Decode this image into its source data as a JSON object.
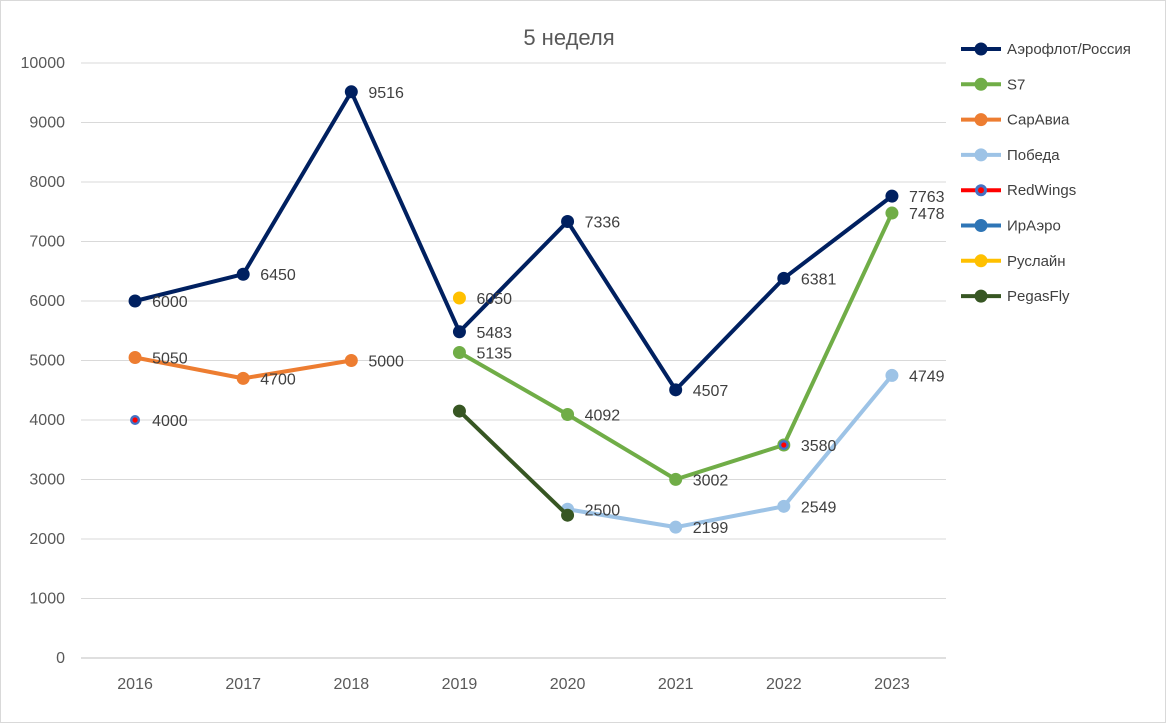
{
  "chart_data": {
    "type": "line",
    "title": "5 неделя",
    "xlabel": "",
    "ylabel": "",
    "categories": [
      "2016",
      "2017",
      "2018",
      "2019",
      "2020",
      "2021",
      "2022",
      "2023"
    ],
    "ylim": [
      0,
      10000
    ],
    "yticks": [
      "0",
      "1000",
      "2000",
      "3000",
      "4000",
      "5000",
      "6000",
      "7000",
      "8000",
      "9000",
      "10000"
    ],
    "grid": true,
    "legend": "right",
    "series": [
      {
        "name": "Аэрофлот/Россия",
        "color": "#002060",
        "values": [
          6000,
          6450,
          9516,
          5483,
          7336,
          4507,
          6381,
          7763
        ],
        "labels": [
          "6000",
          "6450",
          "9516",
          "5483",
          "7336",
          "4507",
          "6381",
          "7763"
        ]
      },
      {
        "name": "S7",
        "color": "#70ad47",
        "values": [
          null,
          null,
          null,
          5135,
          4092,
          3002,
          3580,
          7478
        ],
        "labels": [
          null,
          null,
          null,
          "5135",
          "4092",
          "3002",
          "3580",
          "7478"
        ]
      },
      {
        "name": "СарАвиа",
        "color": "#ed7d31",
        "values": [
          5050,
          4700,
          5000,
          null,
          null,
          null,
          null,
          null
        ],
        "labels": [
          "5050",
          "4700",
          "5000",
          null,
          null,
          null,
          null,
          null
        ]
      },
      {
        "name": "Победа",
        "color": "#9dc3e6",
        "values": [
          null,
          null,
          null,
          null,
          2500,
          2199,
          2549,
          4749
        ],
        "labels": [
          null,
          null,
          null,
          null,
          "2500",
          "2199",
          "2549",
          "4749"
        ]
      },
      {
        "name": "RedWings",
        "color": "#ff0000",
        "marker_color": "#4472c4",
        "values": [
          4000,
          null,
          null,
          null,
          null,
          null,
          3580,
          null
        ],
        "labels": [
          "4000",
          null,
          null,
          null,
          null,
          null,
          null,
          null
        ]
      },
      {
        "name": "ИрАэро",
        "color": "#2e75b6",
        "values": [
          null,
          null,
          null,
          null,
          null,
          null,
          null,
          null
        ],
        "labels": [
          null,
          null,
          null,
          null,
          null,
          null,
          null,
          null
        ]
      },
      {
        "name": "Руслайн",
        "color": "#ffc000",
        "values": [
          null,
          null,
          null,
          6050,
          null,
          null,
          null,
          null
        ],
        "labels": [
          null,
          null,
          null,
          "6050",
          null,
          null,
          null,
          null
        ]
      },
      {
        "name": "PegasFly",
        "color": "#375623",
        "values": [
          null,
          null,
          null,
          4150,
          2400,
          null,
          null,
          null
        ],
        "labels": [
          null,
          null,
          null,
          null,
          null,
          null,
          null,
          null
        ]
      }
    ]
  }
}
